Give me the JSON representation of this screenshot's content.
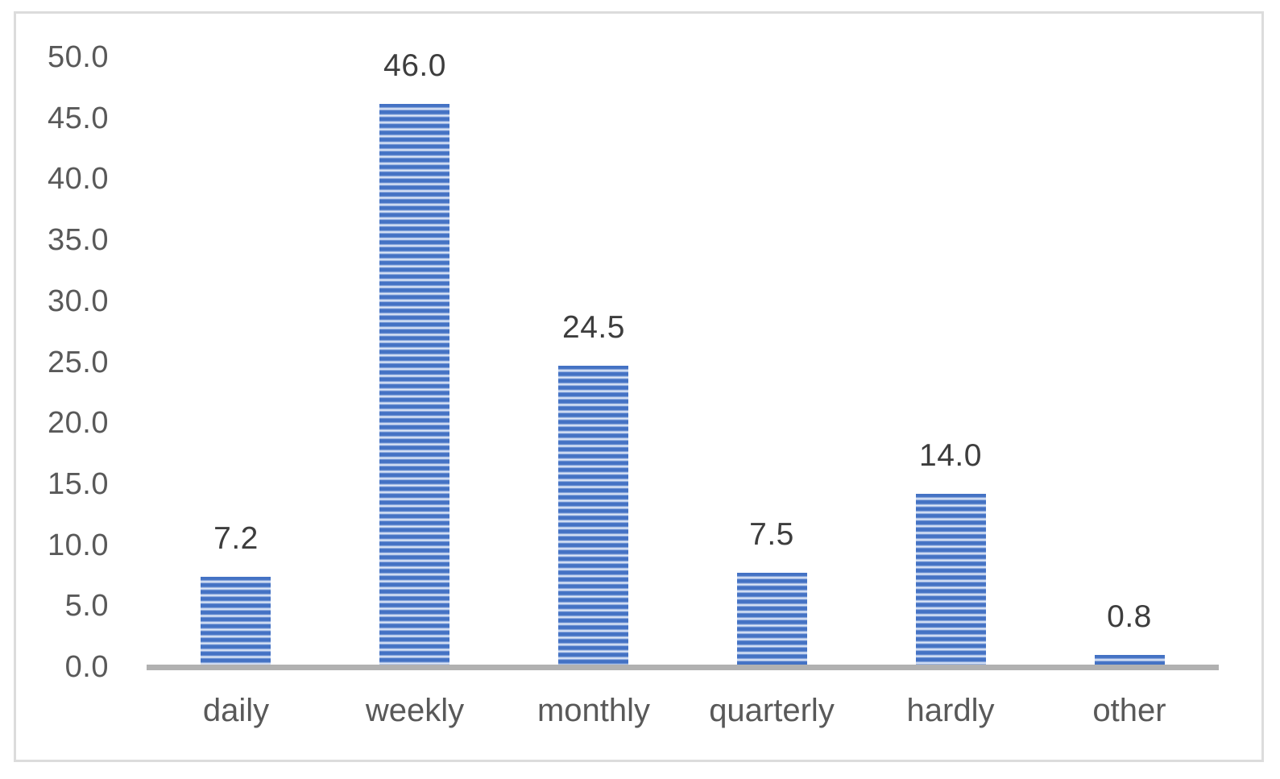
{
  "chart_data": {
    "type": "bar",
    "title": "",
    "xlabel": "",
    "ylabel": "",
    "categories": [
      "daily",
      "weekly",
      "monthly",
      "quarterly",
      "hardly",
      "other"
    ],
    "values": [
      7.2,
      46.0,
      24.5,
      7.5,
      14.0,
      0.8
    ],
    "data_labels": [
      "7.2",
      "46.0",
      "24.5",
      "7.5",
      "14.0",
      "0.8"
    ],
    "y_ticks": [
      {
        "label": "50.0",
        "value": 50
      },
      {
        "label": "45.0",
        "value": 45
      },
      {
        "label": "40.0",
        "value": 40
      },
      {
        "label": "35.0",
        "value": 35
      },
      {
        "label": "30.0",
        "value": 30
      },
      {
        "label": "25.0",
        "value": 25
      },
      {
        "label": "20.0",
        "value": 20
      },
      {
        "label": "15.0",
        "value": 15
      },
      {
        "label": "10.0",
        "value": 10
      },
      {
        "label": "5.0",
        "value": 5
      },
      {
        "label": "0.0",
        "value": 0
      }
    ],
    "ylim": [
      0,
      50
    ],
    "grid": false,
    "legend": null,
    "bar_style": "horizontal-stripe-pattern",
    "colors": {
      "bar_primary": "#4472c4",
      "bar_stripe_mid": "#a6bde6",
      "bar_stripe_light": "#edf2fb",
      "axis_line": "#b1b1b1",
      "tick_label": "#595959",
      "category_label": "#595959",
      "data_label": "#3d3d3d",
      "chart_border": "#dcdcdc",
      "background": "#ffffff"
    }
  }
}
